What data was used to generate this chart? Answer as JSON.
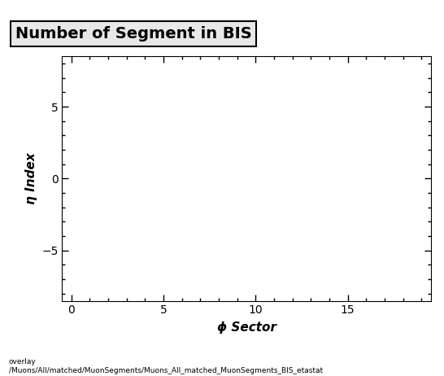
{
  "title": "Number of Segment in BIS",
  "xlabel": "ϕ Sector",
  "ylabel": "η Index",
  "xlim": [
    -0.5,
    19.5
  ],
  "ylim": [
    -8.5,
    8.5
  ],
  "xticks": [
    0,
    5,
    10,
    15
  ],
  "yticks": [
    -5,
    0,
    5
  ],
  "background_color": "#ffffff",
  "plot_bg_color": "#ffffff",
  "title_fontsize": 14,
  "axis_label_fontsize": 11,
  "tick_fontsize": 10,
  "footer_line1": "overlay",
  "footer_line2": "/Muons/All/matched/MuonSegments/Muons_All_matched_MuonSegments_BIS_etastat",
  "title_box_facecolor": "#e8e8e8",
  "title_box_edgecolor": "#000000"
}
